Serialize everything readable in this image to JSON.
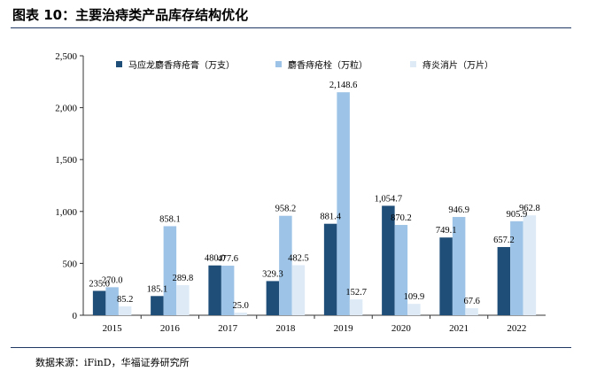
{
  "figure": {
    "title": "图表 10：主要治痔类产品库存结构优化",
    "source": "数据来源：iFinD，华福证券研究所"
  },
  "chart_data": {
    "type": "bar",
    "categories": [
      "2015",
      "2016",
      "2017",
      "2018",
      "2019",
      "2020",
      "2021",
      "2022"
    ],
    "series": [
      {
        "name": "马应龙麝香痔疮膏（万支）",
        "color": "#1f4e79",
        "values": [
          235.0,
          185.1,
          480.0,
          329.3,
          881.4,
          1054.7,
          749.1,
          657.2
        ],
        "labels": [
          "235.0",
          "185.1",
          "480.0",
          "329.3",
          "881.4",
          "1,054.7",
          "749.1",
          "657.2"
        ]
      },
      {
        "name": "麝香痔疮栓（万粒）",
        "color": "#9dc3e6",
        "values": [
          270.0,
          858.1,
          477.6,
          958.2,
          2148.6,
          870.2,
          946.9,
          905.9
        ],
        "labels": [
          "270.0",
          "858.1",
          "477.6",
          "958.2",
          "2,148.6",
          "870.2",
          "946.9",
          "905.9"
        ]
      },
      {
        "name": "痔炎消片（万片）",
        "color": "#deebf7",
        "values": [
          85.2,
          289.8,
          25.0,
          482.5,
          152.7,
          109.9,
          67.6,
          962.8
        ],
        "labels": [
          "85.2",
          "289.8",
          "25.0",
          "482.5",
          "152.7",
          "109.9",
          "67.6",
          "962.8"
        ]
      }
    ],
    "yticks": [
      0,
      500,
      1000,
      1500,
      2000,
      2500
    ],
    "ytick_labels": [
      "0",
      "500",
      "1,000",
      "1,500",
      "2,000",
      "2,500"
    ],
    "ylim": [
      0,
      2500
    ],
    "xlabel": "",
    "ylabel": "",
    "legend_position": "top",
    "grid": false
  }
}
